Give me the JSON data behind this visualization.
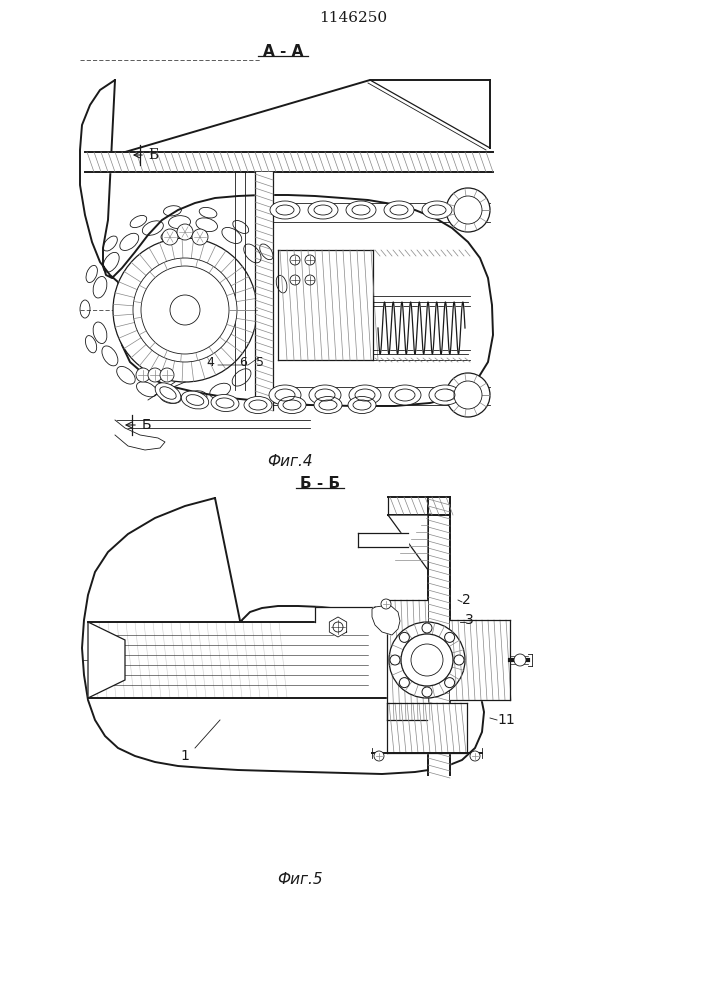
{
  "patent_number": "1146250",
  "fig4_label": "Фиг.4",
  "fig5_label": "Фиг.5",
  "section_aa": "A - A",
  "section_bb": "Б - Б",
  "label_b": "Б",
  "line_color": "#1a1a1a",
  "bg_color": "#ffffff"
}
